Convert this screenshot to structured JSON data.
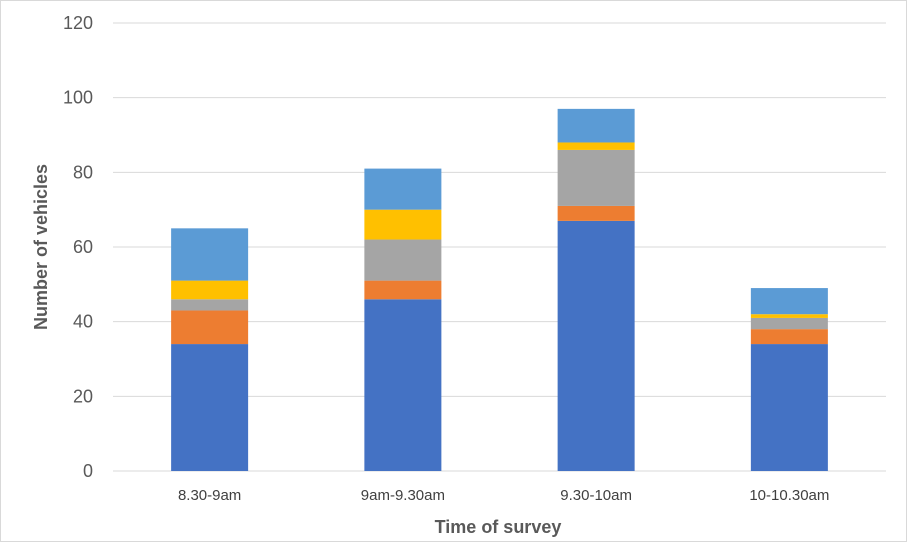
{
  "chart_data": {
    "type": "bar",
    "stacked": true,
    "title": "",
    "xlabel": "Time of survey",
    "ylabel": "Number of vehicles",
    "ylim": [
      0,
      120
    ],
    "yticks": [
      0,
      20,
      40,
      60,
      80,
      100,
      120
    ],
    "grid": true,
    "legend": "none",
    "categories": [
      "8.30-9am",
      "9am-9.30am",
      "9.30-10am",
      "10-10.30am"
    ],
    "series": [
      {
        "color": "#4472c4",
        "values": [
          34,
          46,
          67,
          34
        ]
      },
      {
        "color": "#ed7d31",
        "values": [
          9,
          5,
          4,
          4
        ]
      },
      {
        "color": "#a5a5a5",
        "values": [
          3,
          11,
          15,
          3
        ]
      },
      {
        "color": "#ffc000",
        "values": [
          5,
          8,
          2,
          1
        ]
      },
      {
        "color": "#5b9bd5",
        "values": [
          14,
          11,
          9,
          7
        ]
      }
    ]
  }
}
